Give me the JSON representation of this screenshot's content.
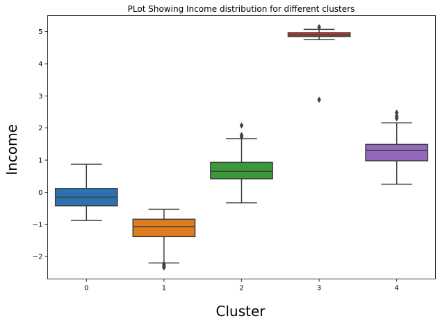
{
  "chart_data": {
    "type": "box",
    "title": "PLot Showing Income distribution for different clusters",
    "xlabel": "Cluster",
    "ylabel": "Income",
    "categories": [
      "0",
      "1",
      "2",
      "3",
      "4"
    ],
    "ylim": [
      -2.7,
      5.5
    ],
    "yticks": [
      -2,
      -1,
      0,
      1,
      2,
      3,
      4,
      5
    ],
    "ytick_labels": [
      "−2",
      "−1",
      "0",
      "1",
      "2",
      "3",
      "4",
      "5"
    ],
    "grid": false,
    "series": [
      {
        "category": "0",
        "color": "#2c72b0",
        "whisker_low": -0.88,
        "q1": -0.42,
        "median": -0.15,
        "q3": 0.12,
        "whisker_high": 0.87,
        "outliers": []
      },
      {
        "category": "1",
        "color": "#e07c20",
        "whisker_low": -2.2,
        "q1": -1.38,
        "median": -1.07,
        "q3": -0.84,
        "whisker_high": -0.53,
        "outliers": [
          -2.24,
          -2.3,
          -2.34
        ]
      },
      {
        "category": "2",
        "color": "#3a9a3a",
        "whisker_low": -0.33,
        "q1": 0.42,
        "median": 0.65,
        "q3": 0.93,
        "whisker_high": 1.67,
        "outliers": [
          1.72,
          1.78,
          2.08
        ]
      },
      {
        "category": "3",
        "color": "#c23b30",
        "whisker_low": 4.75,
        "q1": 4.85,
        "median": 4.9,
        "q3": 4.97,
        "whisker_high": 5.07,
        "outliers": [
          5.14,
          2.88
        ]
      },
      {
        "category": "4",
        "color": "#9468bd",
        "whisker_low": 0.25,
        "q1": 0.98,
        "median": 1.3,
        "q3": 1.49,
        "whisker_high": 2.16,
        "outliers": [
          2.3,
          2.37,
          2.48
        ]
      }
    ]
  }
}
